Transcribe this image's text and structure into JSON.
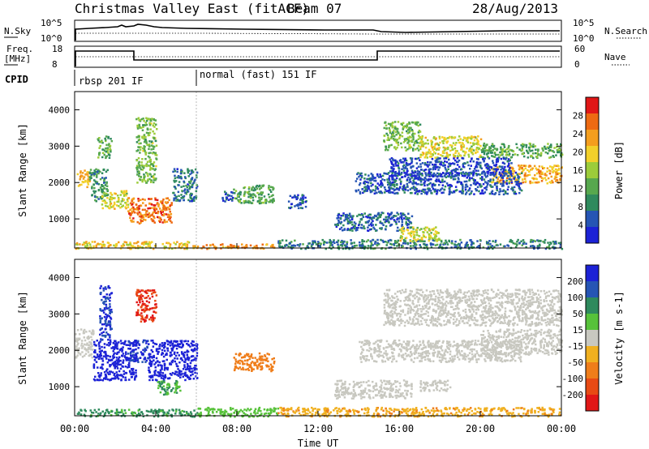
{
  "header": {
    "title": "Christmas Valley East (fitACF)",
    "beam": "Beam 07",
    "date": "28/Aug/2013"
  },
  "top_panels": {
    "nsky_label": "N.Sky",
    "nsky_ticks": [
      "10^5",
      "10^0"
    ],
    "nsearch_label": "N.Search",
    "nsearch_ticks": [
      "10^5",
      "10^0"
    ],
    "freq_label_line1": "Freq.",
    "freq_label_line2": "[MHz]",
    "freq_ticks": [
      "18",
      "8"
    ],
    "nave_label": "Nave",
    "nave_ticks": [
      "60",
      "0"
    ],
    "cpid_label": "CPID",
    "cpid_modes": [
      {
        "label": "rbsp 201 IF",
        "start_hour": 0,
        "end_hour": 6
      },
      {
        "label": "normal (fast) 151 IF",
        "start_hour": 6,
        "end_hour": 24
      }
    ]
  },
  "chart_data": [
    {
      "type": "heatmap",
      "quantity": "Power",
      "ylabel": "Slant Range [km]",
      "colorbar_label": "Power [dB]",
      "colorbar_ticks": [
        4,
        8,
        12,
        16,
        20,
        24,
        28
      ],
      "colorbar_range": [
        0,
        32
      ],
      "colors": [
        "#1c22d6",
        "#2655b4",
        "#2f8a5d",
        "#57a84e",
        "#9ccc3a",
        "#f2d02a",
        "#f49e1e",
        "#ee6a12",
        "#e11717"
      ],
      "ylim": [
        200,
        4500
      ],
      "yticks": [
        1000,
        2000,
        3000,
        4000
      ],
      "xlim": [
        0,
        24
      ],
      "regions": [
        {
          "t0": 0.1,
          "t1": 0.7,
          "r0": 1900,
          "r1": 2400,
          "value": 22
        },
        {
          "t0": 0.7,
          "t1": 1.6,
          "r0": 1500,
          "r1": 2400,
          "value": 10
        },
        {
          "t0": 1.3,
          "t1": 2.6,
          "r0": 1300,
          "r1": 1800,
          "value": 18
        },
        {
          "t0": 2.6,
          "t1": 4.8,
          "r0": 900,
          "r1": 1600,
          "value": 26
        },
        {
          "t0": 3.0,
          "t1": 4.0,
          "r0": 2000,
          "r1": 3800,
          "value": 14
        },
        {
          "t0": 1.1,
          "t1": 1.8,
          "r0": 2700,
          "r1": 3300,
          "value": 12
        },
        {
          "t0": 4.8,
          "t1": 6.0,
          "r0": 1500,
          "r1": 2400,
          "value": 7
        },
        {
          "t0": 7.2,
          "t1": 7.8,
          "r0": 1500,
          "r1": 1800,
          "value": 6
        },
        {
          "t0": 7.8,
          "t1": 9.8,
          "r0": 1450,
          "r1": 1950,
          "value": 12
        },
        {
          "t0": 10.5,
          "t1": 11.4,
          "r0": 1300,
          "r1": 1700,
          "value": 5
        },
        {
          "t0": 12.8,
          "t1": 16.6,
          "r0": 700,
          "r1": 1200,
          "value": 6
        },
        {
          "t0": 15.2,
          "t1": 17.0,
          "r0": 2900,
          "r1": 3700,
          "value": 14
        },
        {
          "t0": 17.0,
          "t1": 20.0,
          "r0": 2700,
          "r1": 3300,
          "value": 18
        },
        {
          "t0": 20.0,
          "t1": 24.0,
          "r0": 2700,
          "r1": 3100,
          "value": 12
        },
        {
          "t0": 20.5,
          "t1": 24.0,
          "r0": 2000,
          "r1": 2500,
          "value": 22
        },
        {
          "t0": 13.8,
          "t1": 22.0,
          "r0": 1700,
          "r1": 2300,
          "value": 5
        },
        {
          "t0": 15.5,
          "t1": 21.5,
          "r0": 2200,
          "r1": 2700,
          "value": 4
        },
        {
          "t0": 0.0,
          "t1": 6.0,
          "r0": 200,
          "r1": 400,
          "value": 20
        },
        {
          "t0": 6.0,
          "t1": 10.0,
          "r0": 200,
          "r1": 330,
          "value": 24
        },
        {
          "t0": 10.0,
          "t1": 24.0,
          "r0": 200,
          "r1": 450,
          "value": 8
        },
        {
          "t0": 16.0,
          "t1": 18.0,
          "r0": 400,
          "r1": 800,
          "value": 18
        }
      ]
    },
    {
      "type": "heatmap",
      "quantity": "Velocity",
      "ylabel": "Slant Range [km]",
      "colorbar_label": "Velocity [m s-1]",
      "colorbar_ticks": [
        200,
        100,
        50,
        15,
        -15,
        -50,
        -100,
        -200
      ],
      "colors": [
        "#1c22d6",
        "#2655b4",
        "#2f8a5d",
        "#57c23a",
        "#c8c8c0",
        "#f0b020",
        "#ef7d1a",
        "#e84a14",
        "#e11717"
      ],
      "ylim": [
        200,
        4500
      ],
      "yticks": [
        1000,
        2000,
        3000,
        4000
      ],
      "xlim": [
        0,
        24
      ],
      "xticks": [
        "00:00",
        "04:00",
        "08:00",
        "12:00",
        "16:00",
        "20:00",
        "00:00"
      ],
      "xlabel": "Time UT",
      "regions": [
        {
          "t0": 0.0,
          "t1": 0.9,
          "r0": 1800,
          "r1": 2600,
          "value": 0
        },
        {
          "t0": 0.9,
          "t1": 3.0,
          "r0": 1200,
          "r1": 2300,
          "value": 220
        },
        {
          "t0": 1.2,
          "t1": 1.8,
          "r0": 2300,
          "r1": 3800,
          "value": 200
        },
        {
          "t0": 2.6,
          "t1": 3.6,
          "r0": 1700,
          "r1": 2300,
          "value": 200
        },
        {
          "t0": 3.6,
          "t1": 6.0,
          "r0": 1200,
          "r1": 2300,
          "value": 220
        },
        {
          "t0": 3.0,
          "t1": 4.0,
          "r0": 2800,
          "r1": 3700,
          "value": -200
        },
        {
          "t0": 4.0,
          "t1": 5.2,
          "r0": 800,
          "r1": 1200,
          "value": 50
        },
        {
          "t0": 7.8,
          "t1": 9.8,
          "r0": 1450,
          "r1": 1950,
          "value": -80
        },
        {
          "t0": 0.0,
          "t1": 6.0,
          "r0": 200,
          "r1": 400,
          "value": 60
        },
        {
          "t0": 6.0,
          "t1": 10.0,
          "r0": 200,
          "r1": 450,
          "value": 30
        },
        {
          "t0": 10.0,
          "t1": 24.0,
          "r0": 200,
          "r1": 450,
          "value": -40
        },
        {
          "t0": 15.2,
          "t1": 24.0,
          "r0": 2700,
          "r1": 3700,
          "value": 0
        },
        {
          "t0": 20.0,
          "t1": 24.0,
          "r0": 1900,
          "r1": 2600,
          "value": 0
        },
        {
          "t0": 14.0,
          "t1": 22.0,
          "r0": 1700,
          "r1": 2300,
          "value": 0
        },
        {
          "t0": 12.8,
          "t1": 16.6,
          "r0": 700,
          "r1": 1200,
          "value": 0
        },
        {
          "t0": 17.0,
          "t1": 18.5,
          "r0": 900,
          "r1": 1200,
          "value": 0
        }
      ]
    }
  ]
}
